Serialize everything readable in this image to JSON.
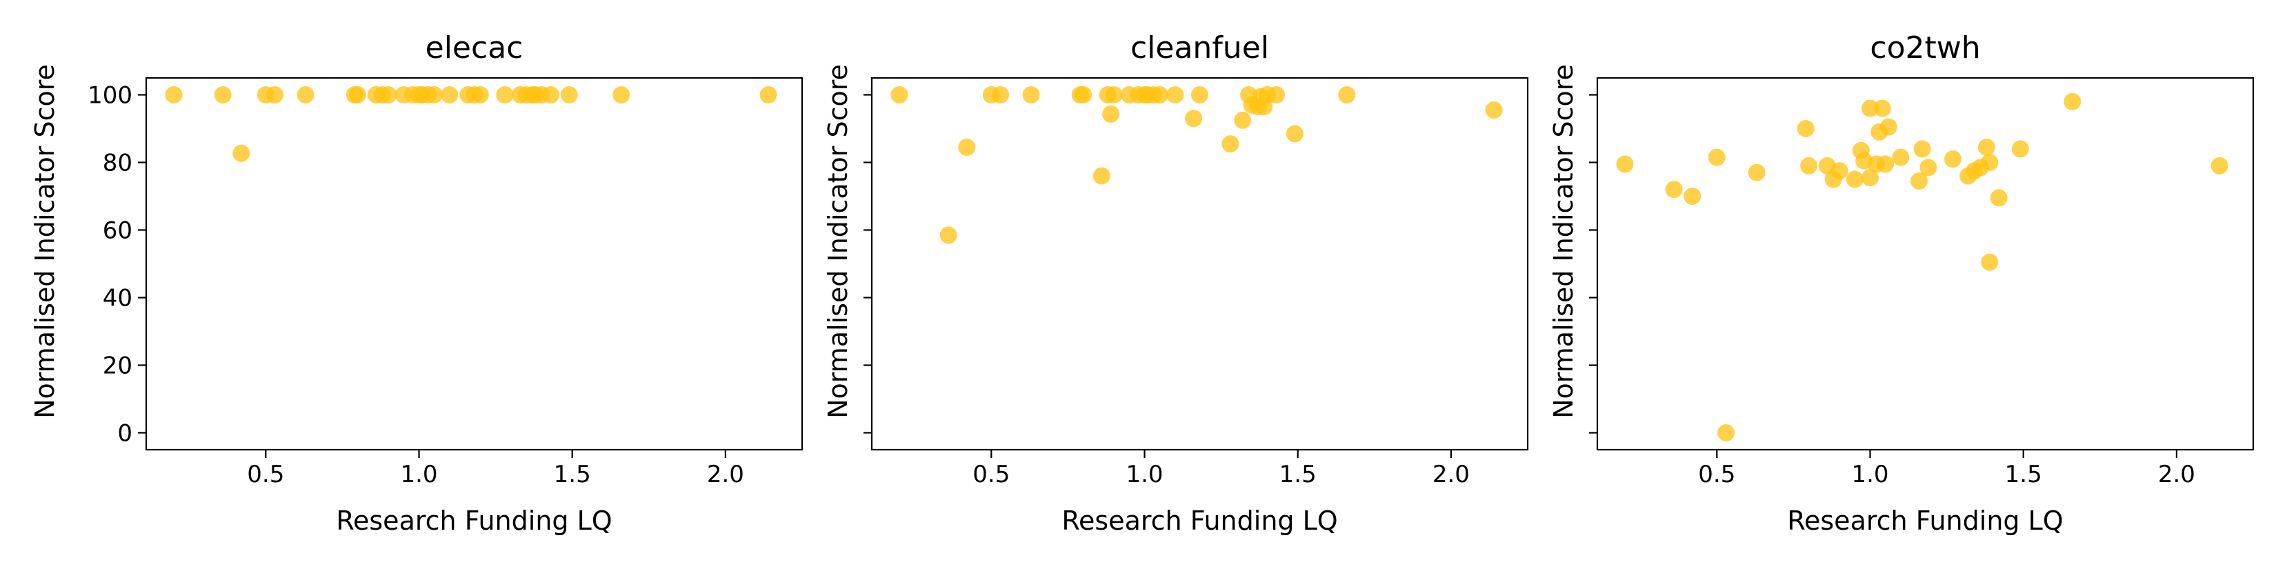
{
  "chart_data": [
    {
      "type": "scatter",
      "title": "elecac",
      "xlabel": "Research Funding LQ",
      "ylabel": "Normalised Indicator Score",
      "xlim": [
        0.11,
        2.25
      ],
      "ylim": [
        -5,
        105
      ],
      "xticks": [
        "0.5",
        "1.0",
        "1.5",
        "2.0"
      ],
      "yticks": [
        "0",
        "20",
        "40",
        "60",
        "80",
        "100"
      ],
      "show_ytick_labels": true,
      "marker_color": "#FFC20E",
      "points": [
        [
          0.2,
          100
        ],
        [
          0.36,
          100
        ],
        [
          0.42,
          82.7
        ],
        [
          0.5,
          100
        ],
        [
          0.53,
          100
        ],
        [
          0.63,
          100
        ],
        [
          0.79,
          100
        ],
        [
          0.8,
          100
        ],
        [
          0.86,
          100
        ],
        [
          0.88,
          100
        ],
        [
          0.9,
          100
        ],
        [
          0.95,
          100
        ],
        [
          0.98,
          100
        ],
        [
          1.0,
          100
        ],
        [
          1.01,
          100
        ],
        [
          1.03,
          100
        ],
        [
          1.05,
          100
        ],
        [
          1.1,
          100
        ],
        [
          1.16,
          100
        ],
        [
          1.18,
          100
        ],
        [
          1.2,
          100
        ],
        [
          1.28,
          100
        ],
        [
          1.33,
          100
        ],
        [
          1.35,
          100
        ],
        [
          1.37,
          100
        ],
        [
          1.38,
          100
        ],
        [
          1.4,
          100
        ],
        [
          1.43,
          100
        ],
        [
          1.49,
          100
        ],
        [
          1.66,
          100
        ],
        [
          2.14,
          100
        ]
      ]
    },
    {
      "type": "scatter",
      "title": "cleanfuel",
      "xlabel": "Research Funding LQ",
      "ylabel": "Normalised Indicator Score",
      "xlim": [
        0.11,
        2.25
      ],
      "ylim": [
        -5,
        105
      ],
      "xticks": [
        "0.5",
        "1.0",
        "1.5",
        "2.0"
      ],
      "yticks": [
        "0",
        "20",
        "40",
        "60",
        "80",
        "100"
      ],
      "show_ytick_labels": false,
      "marker_color": "#FFC20E",
      "points": [
        [
          0.2,
          100
        ],
        [
          0.36,
          58.5
        ],
        [
          0.42,
          84.5
        ],
        [
          0.5,
          100
        ],
        [
          0.53,
          100
        ],
        [
          0.63,
          100
        ],
        [
          0.79,
          100
        ],
        [
          0.8,
          100
        ],
        [
          0.86,
          76
        ],
        [
          0.88,
          100
        ],
        [
          0.89,
          94.3
        ],
        [
          0.9,
          100
        ],
        [
          0.95,
          100
        ],
        [
          0.98,
          100
        ],
        [
          1.0,
          100
        ],
        [
          1.01,
          100
        ],
        [
          1.03,
          100
        ],
        [
          1.05,
          100
        ],
        [
          1.1,
          100
        ],
        [
          1.16,
          93
        ],
        [
          1.18,
          100
        ],
        [
          1.28,
          85.5
        ],
        [
          1.32,
          92.5
        ],
        [
          1.34,
          100
        ],
        [
          1.35,
          97
        ],
        [
          1.37,
          96.5
        ],
        [
          1.38,
          99.5
        ],
        [
          1.39,
          96.5
        ],
        [
          1.4,
          100
        ],
        [
          1.43,
          100
        ],
        [
          1.49,
          88.5
        ],
        [
          1.66,
          100
        ],
        [
          2.14,
          95.5
        ]
      ]
    },
    {
      "type": "scatter",
      "title": "co2twh",
      "xlabel": "Research Funding LQ",
      "ylabel": "Normalised Indicator Score",
      "xlim": [
        0.11,
        2.25
      ],
      "ylim": [
        -5,
        105
      ],
      "xticks": [
        "0.5",
        "1.0",
        "1.5",
        "2.0"
      ],
      "yticks": [
        "0",
        "20",
        "40",
        "60",
        "80",
        "100"
      ],
      "show_ytick_labels": false,
      "marker_color": "#FFC20E",
      "points": [
        [
          0.2,
          79.5
        ],
        [
          0.36,
          72
        ],
        [
          0.42,
          70
        ],
        [
          0.5,
          81.5
        ],
        [
          0.53,
          0
        ],
        [
          0.63,
          77
        ],
        [
          0.79,
          90
        ],
        [
          0.8,
          79
        ],
        [
          0.86,
          79
        ],
        [
          0.88,
          75
        ],
        [
          0.9,
          77.5
        ],
        [
          0.95,
          75
        ],
        [
          0.97,
          83.5
        ],
        [
          0.98,
          80.5
        ],
        [
          1.0,
          96
        ],
        [
          1.0,
          75.5
        ],
        [
          1.02,
          79.5
        ],
        [
          1.03,
          89
        ],
        [
          1.04,
          96
        ],
        [
          1.05,
          79.5
        ],
        [
          1.06,
          90.5
        ],
        [
          1.1,
          81.5
        ],
        [
          1.16,
          74.5
        ],
        [
          1.17,
          84
        ],
        [
          1.19,
          78.5
        ],
        [
          1.27,
          81
        ],
        [
          1.32,
          76
        ],
        [
          1.34,
          77.5
        ],
        [
          1.36,
          78.5
        ],
        [
          1.38,
          84.5
        ],
        [
          1.39,
          80
        ],
        [
          1.39,
          50.5
        ],
        [
          1.42,
          69.5
        ],
        [
          1.49,
          84
        ],
        [
          1.66,
          98
        ],
        [
          2.14,
          79
        ]
      ]
    }
  ]
}
